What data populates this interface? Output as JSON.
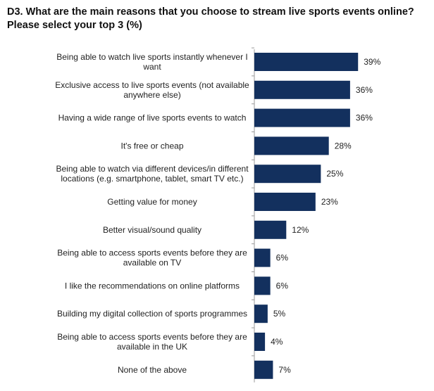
{
  "title": "D3. What are the main reasons that you choose to stream live sports events online? Please select your top 3 (%)",
  "colors": {
    "bar": "#13305e",
    "axis": "#9a9a9a"
  },
  "chart_data": {
    "type": "bar",
    "orientation": "horizontal",
    "title": "D3. What are the main reasons that you choose to stream live sports events online? Please select your top 3 (%)",
    "categories": [
      [
        "Being able to watch live sports instantly whenever I",
        "want"
      ],
      [
        "Exclusive access to live sports events (not available",
        "anywhere else)"
      ],
      [
        "Having a wide range of live sports events to watch"
      ],
      [
        "It's free or cheap"
      ],
      [
        "Being able to watch via different devices/in different",
        "locations (e.g. smartphone, tablet, smart TV etc.)"
      ],
      [
        "Getting value for money"
      ],
      [
        "Better visual/sound quality"
      ],
      [
        "Being able to access sports events before they are",
        "available on TV"
      ],
      [
        "I like the recommendations on online platforms"
      ],
      [
        "Building my digital collection of sports programmes"
      ],
      [
        "Being able to access sports events before they are",
        "available in the UK"
      ],
      [
        "None of the above"
      ]
    ],
    "values": [
      39,
      36,
      36,
      28,
      25,
      23,
      12,
      6,
      6,
      5,
      4,
      7
    ],
    "value_labels": [
      "39%",
      "36%",
      "36%",
      "28%",
      "25%",
      "23%",
      "12%",
      "6%",
      "6%",
      "5%",
      "4%",
      "7%"
    ],
    "xlim": [
      0,
      40
    ],
    "grid": false,
    "legend": "none"
  }
}
